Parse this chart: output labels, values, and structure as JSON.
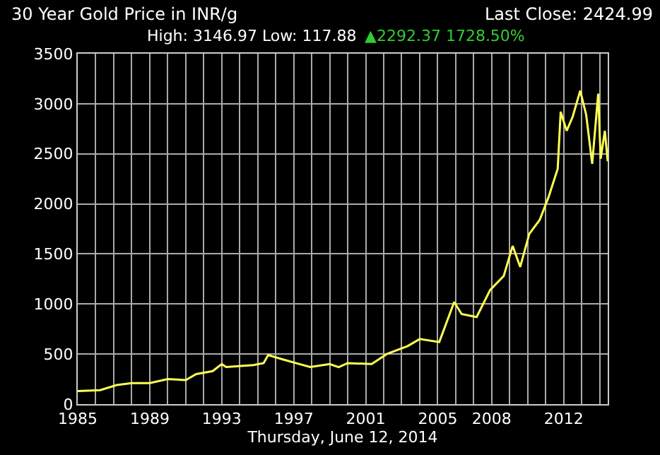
{
  "chart_data": {
    "type": "line",
    "title": "30 Year Gold Price in INR/g",
    "subtitle": "High: 3146.97 Low: 117.88",
    "xlabel": "Thursday, June 12, 2014",
    "annotations": [
      "Last Close: 2424.99",
      "▲2292.37 1728.50%"
    ],
    "x": [
      "1985-01",
      "1986-04",
      "1987-03",
      "1988-01",
      "1989-01",
      "1990-01",
      "1991-01",
      "1991-08",
      "1992-07",
      "1993-01",
      "1993-04",
      "1994-10",
      "1995-05",
      "1995-08",
      "1996-05",
      "1997-05",
      "1997-12",
      "1999-01",
      "1999-07",
      "2000-01",
      "2001-05",
      "2002-03",
      "2003-05",
      "2004-01",
      "2005-02",
      "2005-12",
      "2006-05",
      "2007-03",
      "2007-12",
      "2008-09",
      "2009-03",
      "2009-08",
      "2010-02",
      "2010-09",
      "2011-03",
      "2011-09",
      "2011-11",
      "2012-03",
      "2012-07",
      "2012-12",
      "2013-04",
      "2013-08",
      "2013-12",
      "2014-01-20",
      "2014-04-15",
      "2014-06-12"
    ],
    "series": [
      {
        "color": "#ffff55",
        "values": [
          130,
          140,
          190,
          210,
          210,
          250,
          240,
          300,
          330,
          400,
          370,
          390,
          410,
          490,
          450,
          400,
          370,
          400,
          370,
          410,
          400,
          500,
          580,
          650,
          620,
          1020,
          900,
          870,
          1140,
          1280,
          1580,
          1370,
          1700,
          1840,
          2070,
          2350,
          2920,
          2730,
          2870,
          3130,
          2890,
          2400,
          3100,
          2450,
          2730,
          2425
        ]
      }
    ],
    "xlim": [
      "1985-01-01",
      "2014-06-12"
    ],
    "xticks": [
      "1985",
      {
        "value": "1986",
        "label": null
      },
      {
        "value": "1987",
        "label": null
      },
      {
        "value": "1988",
        "label": null
      },
      "1989",
      {
        "value": "1990",
        "label": null
      },
      {
        "value": "1991",
        "label": null
      },
      {
        "value": "1992",
        "label": null
      },
      "1993",
      {
        "value": "1994",
        "label": null
      },
      {
        "value": "1995",
        "label": null
      },
      {
        "value": "1996",
        "label": null
      },
      "1997",
      {
        "value": "1998",
        "label": null
      },
      {
        "value": "1999",
        "label": null
      },
      {
        "value": "2000",
        "label": null
      },
      "2001",
      {
        "value": "2002",
        "label": null
      },
      {
        "value": "2003",
        "label": null
      },
      {
        "value": "2004",
        "label": null
      },
      "2005",
      {
        "value": "2006",
        "label": null
      },
      {
        "value": "2007",
        "label": null
      },
      "2008",
      {
        "value": "2009",
        "label": null
      },
      {
        "value": "2010",
        "label": null
      },
      {
        "value": "2011",
        "label": null
      },
      "2012",
      {
        "value": "2013",
        "label": null
      },
      {
        "value": "2014",
        "label": null
      }
    ],
    "ylim": [
      0,
      3500
    ],
    "yticks": [
      0,
      500,
      1000,
      1500,
      2000,
      2500,
      3000,
      3500
    ],
    "grid": true,
    "marker": "none",
    "line_style": "solid"
  }
}
